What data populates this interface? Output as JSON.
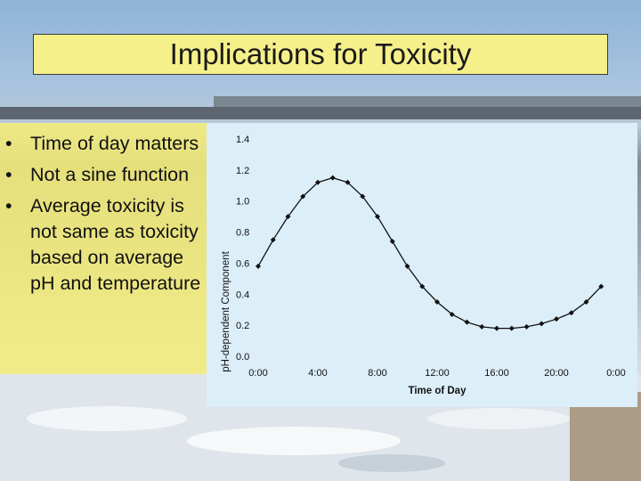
{
  "slide": {
    "title": "Implications for Toxicity",
    "bullets": [
      "Time of day matters",
      "Not a sine function",
      "Average toxicity is not same as toxicity based on average pH and temperature"
    ]
  },
  "colors": {
    "title_fill": "#f5f08a",
    "bullet_panel": "#f6ee78",
    "chart_background": "#dceef8",
    "series": "#111111"
  },
  "chart_data": {
    "type": "line",
    "title": "",
    "xlabel": "Time of Day",
    "ylabel": "pH-dependent Component",
    "x_tick_labels": [
      "0:00",
      "4:00",
      "8:00",
      "12:00",
      "16:00",
      "20:00",
      "0:00"
    ],
    "y_tick_labels": [
      "0.0",
      "0.2",
      "0.4",
      "0.6",
      "0.8",
      "1.0",
      "1.2",
      "1.4"
    ],
    "xlim": [
      0,
      24
    ],
    "ylim": [
      0,
      1.4
    ],
    "grid": false,
    "series": [
      {
        "x": [
          0,
          1,
          2,
          3,
          4,
          5,
          6,
          7,
          8,
          9,
          10,
          11,
          12,
          13,
          14,
          15,
          16,
          17,
          18,
          19,
          20,
          21,
          22,
          23
        ],
        "y": [
          0.58,
          0.75,
          0.9,
          1.03,
          1.12,
          1.15,
          1.12,
          1.03,
          0.9,
          0.74,
          0.58,
          0.45,
          0.35,
          0.27,
          0.22,
          0.19,
          0.18,
          0.18,
          0.19,
          0.21,
          0.24,
          0.28,
          0.35,
          0.45
        ]
      }
    ]
  }
}
